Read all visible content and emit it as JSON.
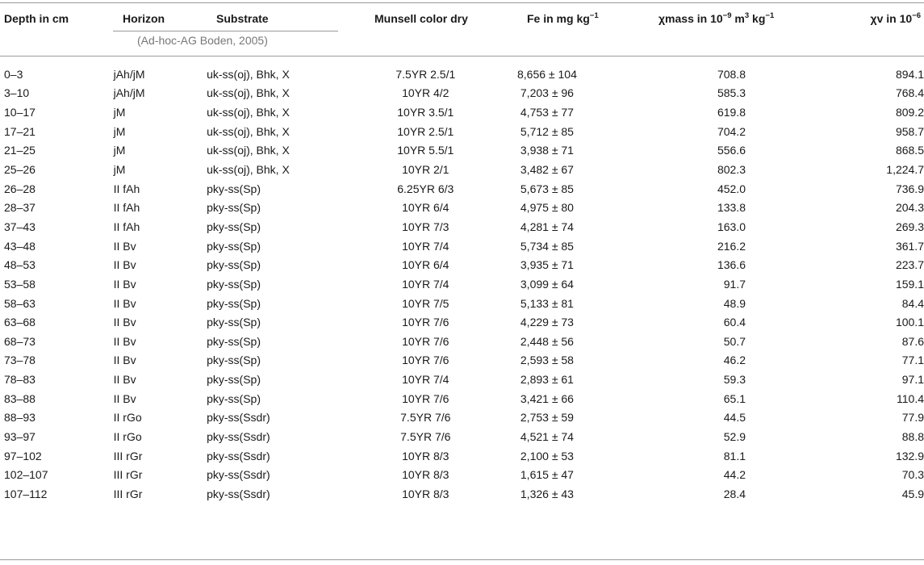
{
  "headers": {
    "depth": "Depth in cm",
    "horizon": "Horizon",
    "substrate": "Substrate",
    "munsell": "Munsell color dry",
    "fe_main": "Fe in mg kg",
    "fe_sup": "−1",
    "chimass_a": "χmass in 10",
    "chimass_sup1": "−9",
    "chimass_b": " m",
    "chimass_sup2": "3",
    "chimass_c": " kg",
    "chimass_sup3": "−1",
    "chiv_main": "χv in 10",
    "chiv_sup": "−6"
  },
  "source": "(Ad-hoc-AG Boden, 2005)",
  "rows": [
    {
      "depth": "0–3",
      "horizon": "jAh/jM",
      "substrate": "uk-ss(oj), Bhk, X",
      "munsell": "7.5YR 2.5/1",
      "fe": "8,656 ± 104",
      "chimass": "708.8",
      "chiv": "894.1"
    },
    {
      "depth": "3–10",
      "horizon": "jAh/jM",
      "substrate": "uk-ss(oj), Bhk, X",
      "munsell": "10YR 4/2",
      "fe": "7,203 ± 96",
      "chimass": "585.3",
      "chiv": "768.4"
    },
    {
      "depth": "10–17",
      "horizon": "jM",
      "substrate": "uk-ss(oj), Bhk, X",
      "munsell": "10YR 3.5/1",
      "fe": "4,753 ± 77",
      "chimass": "619.8",
      "chiv": "809.2"
    },
    {
      "depth": "17–21",
      "horizon": "jM",
      "substrate": "uk-ss(oj), Bhk, X",
      "munsell": "10YR 2.5/1",
      "fe": "5,712 ± 85",
      "chimass": "704.2",
      "chiv": "958.7"
    },
    {
      "depth": "21–25",
      "horizon": "jM",
      "substrate": "uk-ss(oj), Bhk, X",
      "munsell": "10YR 5.5/1",
      "fe": "3,938 ± 71",
      "chimass": "556.6",
      "chiv": "868.5"
    },
    {
      "depth": "25–26",
      "horizon": "jM",
      "substrate": "uk-ss(oj), Bhk, X",
      "munsell": "10YR 2/1",
      "fe": "3,482 ± 67",
      "chimass": "802.3",
      "chiv": "1,224.7"
    },
    {
      "depth": "26–28",
      "horizon": "II fAh",
      "substrate": "pky-ss(Sp)",
      "munsell": "6.25YR 6/3",
      "fe": "5,673 ± 85",
      "chimass": "452.0",
      "chiv": "736.9"
    },
    {
      "depth": "28–37",
      "horizon": "II fAh",
      "substrate": "pky-ss(Sp)",
      "munsell": "10YR 6/4",
      "fe": "4,975 ± 80",
      "chimass": "133.8",
      "chiv": "204.3"
    },
    {
      "depth": "37–43",
      "horizon": "II fAh",
      "substrate": "pky-ss(Sp)",
      "munsell": "10YR 7/3",
      "fe": "4,281 ± 74",
      "chimass": "163.0",
      "chiv": "269.3"
    },
    {
      "depth": "43–48",
      "horizon": "II Bv",
      "substrate": "pky-ss(Sp)",
      "munsell": "10YR 7/4",
      "fe": "5,734 ± 85",
      "chimass": "216.2",
      "chiv": "361.7"
    },
    {
      "depth": "48–53",
      "horizon": "II Bv",
      "substrate": "pky-ss(Sp)",
      "munsell": "10YR 6/4",
      "fe": "3,935 ± 71",
      "chimass": "136.6",
      "chiv": "223.7"
    },
    {
      "depth": "53–58",
      "horizon": "II Bv",
      "substrate": "pky-ss(Sp)",
      "munsell": "10YR 7/4",
      "fe": "3,099 ± 64",
      "chimass": "91.7",
      "chiv": "159.1"
    },
    {
      "depth": "58–63",
      "horizon": "II Bv",
      "substrate": "pky-ss(Sp)",
      "munsell": "10YR 7/5",
      "fe": "5,133 ± 81",
      "chimass": "48.9",
      "chiv": "84.4"
    },
    {
      "depth": "63–68",
      "horizon": "II Bv",
      "substrate": "pky-ss(Sp)",
      "munsell": "10YR 7/6",
      "fe": "4,229 ± 73",
      "chimass": "60.4",
      "chiv": "100.1"
    },
    {
      "depth": "68–73",
      "horizon": "II Bv",
      "substrate": "pky-ss(Sp)",
      "munsell": "10YR 7/6",
      "fe": "2,448 ± 56",
      "chimass": "50.7",
      "chiv": "87.6"
    },
    {
      "depth": "73–78",
      "horizon": "II Bv",
      "substrate": "pky-ss(Sp)",
      "munsell": "10YR 7/6",
      "fe": "2,593 ± 58",
      "chimass": "46.2",
      "chiv": "77.1"
    },
    {
      "depth": "78–83",
      "horizon": "II Bv",
      "substrate": "pky-ss(Sp)",
      "munsell": "10YR 7/4",
      "fe": "2,893 ± 61",
      "chimass": "59.3",
      "chiv": "97.1"
    },
    {
      "depth": "83–88",
      "horizon": "II Bv",
      "substrate": "pky-ss(Sp)",
      "munsell": "10YR 7/6",
      "fe": "3,421 ± 66",
      "chimass": "65.1",
      "chiv": "110.4"
    },
    {
      "depth": "88–93",
      "horizon": "II rGo",
      "substrate": "pky-ss(Ssdr)",
      "munsell": "7.5YR 7/6",
      "fe": "2,753 ± 59",
      "chimass": "44.5",
      "chiv": "77.9"
    },
    {
      "depth": "93–97",
      "horizon": "II rGo",
      "substrate": "pky-ss(Ssdr)",
      "munsell": "7.5YR 7/6",
      "fe": "4,521 ± 74",
      "chimass": "52.9",
      "chiv": "88.8"
    },
    {
      "depth": "97–102",
      "horizon": "III rGr",
      "substrate": "pky-ss(Ssdr)",
      "munsell": "10YR 8/3",
      "fe": "2,100 ± 53",
      "chimass": "81.1",
      "chiv": "132.9"
    },
    {
      "depth": "102–107",
      "horizon": "III rGr",
      "substrate": "pky-ss(Ssdr)",
      "munsell": "10YR 8/3",
      "fe": "1,615 ± 47",
      "chimass": "44.2",
      "chiv": "70.3"
    },
    {
      "depth": "107–112",
      "horizon": "III rGr",
      "substrate": "pky-ss(Ssdr)",
      "munsell": "10YR 8/3",
      "fe": "1,326 ± 43",
      "chimass": "28.4",
      "chiv": "45.9"
    }
  ]
}
